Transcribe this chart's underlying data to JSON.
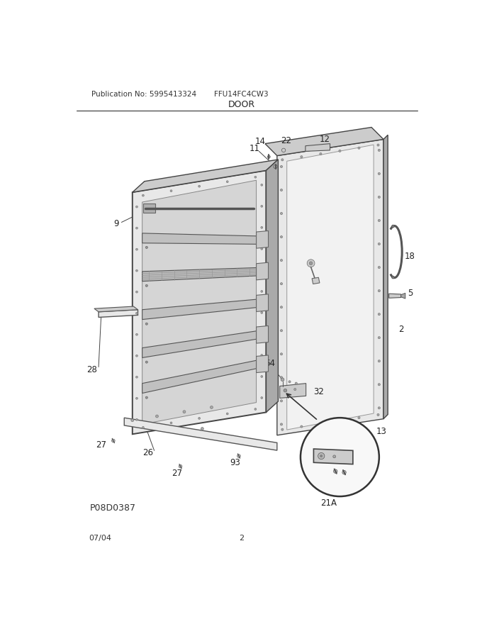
{
  "title": "DOOR",
  "pub_no": "Publication No: 5995413324",
  "model": "FFU14FC4CW3",
  "date": "07/04",
  "page": "2",
  "diagram_id": "P08D0387",
  "bg_color": "#ffffff",
  "line_color": "#555555",
  "gray_light": "#e8e8e8",
  "gray_mid": "#cccccc",
  "gray_dark": "#aaaaaa",
  "white_panel": "#f2f2f2"
}
